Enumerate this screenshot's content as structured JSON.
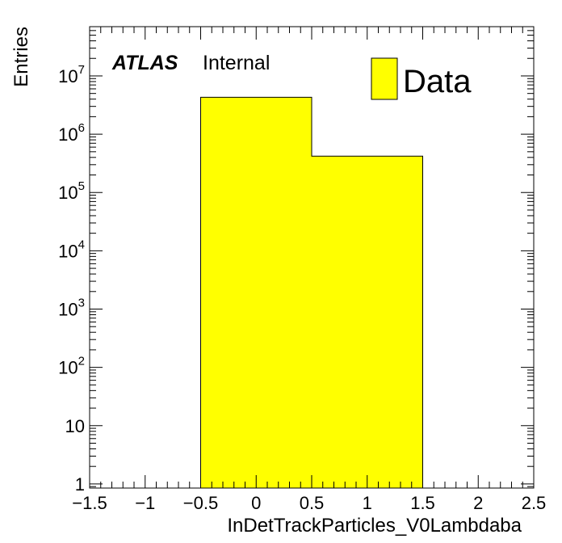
{
  "chart_data": {
    "type": "bar",
    "histogram": true,
    "bin_edges": [
      -0.5,
      0.5,
      1.5
    ],
    "values": [
      4300000,
      420000
    ],
    "xlabel": "InDetTrackParticles_V0Lambdaba",
    "ylabel": "Entries",
    "xlim": [
      -1.5,
      2.5
    ],
    "ylim": [
      0.85,
      70000000
    ],
    "yscale": "log",
    "x_ticks": [
      "−1.5",
      "−1",
      "−0.5",
      "0",
      "0.5",
      "1",
      "1.5",
      "2",
      "2.5"
    ],
    "y_ticks": [
      {
        "value": 1,
        "base": "1",
        "exp": ""
      },
      {
        "value": 10,
        "base": "10",
        "exp": ""
      },
      {
        "value": 100,
        "base": "10",
        "exp": "2"
      },
      {
        "value": 1000,
        "base": "10",
        "exp": "3"
      },
      {
        "value": 10000,
        "base": "10",
        "exp": "4"
      },
      {
        "value": 100000,
        "base": "10",
        "exp": "5"
      },
      {
        "value": 1000000,
        "base": "10",
        "exp": "6"
      },
      {
        "value": 10000000,
        "base": "10",
        "exp": "7"
      }
    ],
    "series": [
      {
        "name": "Data",
        "color": "#ffff00"
      }
    ],
    "legend_position": "top-right",
    "grid": false,
    "label": {
      "experiment": "ATLAS",
      "status": "Internal"
    }
  }
}
